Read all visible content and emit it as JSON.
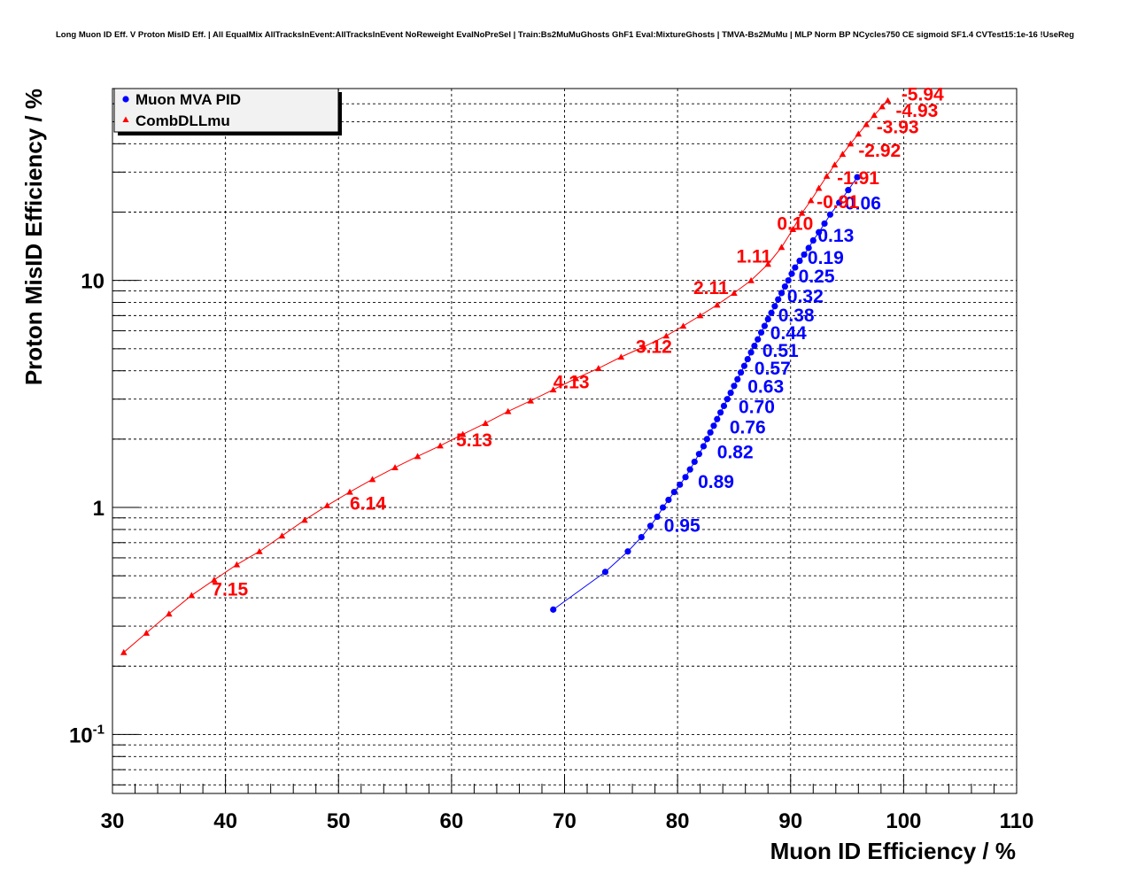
{
  "chart_data": {
    "type": "scatter",
    "title": "Long Muon ID Eff. V Proton MisID Eff. | All EqualMix AllTracksInEvent:AllTracksInEvent NoReweight EvalNoPreSel | Train:Bs2MuMuGhosts GhF1 Eval:MixtureGhosts | TMVA-Bs2MuMu | MLP Norm BP NCycles750 CE sigmoid SF1.4 CVTest15:1e-16 !UseReg",
    "xlabel": "Muon ID Efficiency / %",
    "ylabel": "Proton MisID Efficiency / %",
    "xlim": [
      30,
      110
    ],
    "ylim": [
      0.055,
      70
    ],
    "y_scale": "log",
    "grid": true,
    "legend_position": "top-left",
    "x_ticks": [
      "30",
      "40",
      "50",
      "60",
      "70",
      "80",
      "90",
      "100",
      "110"
    ],
    "y_ticks": [
      {
        "value": 0.1,
        "base": "10",
        "exp": "-1"
      },
      {
        "value": 1,
        "base": "1",
        "exp": ""
      },
      {
        "value": 10,
        "base": "10",
        "exp": ""
      }
    ],
    "series": [
      {
        "name": "Muon MVA PID",
        "color": "#0000ff",
        "marker": "circle",
        "x": [
          69.0,
          73.6,
          75.6,
          76.8,
          77.6,
          78.2,
          78.7,
          79.2,
          79.7,
          80.2,
          80.7,
          81.1,
          81.5,
          81.9,
          82.3,
          82.6,
          82.9,
          83.2,
          83.5,
          83.8,
          84.1,
          84.4,
          84.7,
          85.0,
          85.3,
          85.6,
          85.9,
          86.2,
          86.5,
          86.8,
          87.1,
          87.4,
          87.7,
          88.0,
          88.3,
          88.6,
          88.9,
          89.2,
          89.5,
          89.8,
          90.1,
          90.4,
          90.8,
          91.2,
          91.6,
          92.0,
          92.5,
          93.0,
          93.5,
          94.3,
          95.1,
          95.9
        ],
        "y": [
          0.355,
          0.52,
          0.64,
          0.74,
          0.83,
          0.91,
          1.0,
          1.08,
          1.17,
          1.26,
          1.36,
          1.47,
          1.59,
          1.72,
          1.86,
          2.0,
          2.14,
          2.29,
          2.45,
          2.62,
          2.8,
          3.0,
          3.2,
          3.43,
          3.67,
          3.93,
          4.2,
          4.5,
          4.82,
          5.15,
          5.5,
          5.9,
          6.3,
          6.75,
          7.2,
          7.7,
          8.25,
          8.8,
          9.4,
          10.0,
          10.7,
          11.4,
          12.2,
          13.0,
          13.9,
          15.0,
          16.3,
          17.8,
          19.5,
          22.0,
          25.0,
          28.5
        ]
      },
      {
        "name": "CombDLLmu",
        "color": "#ff0000",
        "marker": "triangle",
        "x": [
          31.0,
          33.0,
          35.0,
          37.0,
          39.0,
          41.0,
          43.0,
          45.0,
          47.0,
          49.0,
          51.0,
          53.0,
          55.0,
          57.0,
          59.0,
          61.0,
          63.0,
          65.0,
          67.0,
          69.0,
          71.0,
          73.0,
          75.0,
          77.0,
          79.0,
          80.5,
          82.0,
          83.5,
          85.0,
          86.5,
          88.0,
          89.2,
          90.2,
          91.0,
          91.8,
          92.5,
          93.2,
          93.9,
          94.6,
          95.3,
          96.0,
          96.7,
          97.4,
          98.1,
          98.6
        ],
        "y": [
          0.23,
          0.28,
          0.34,
          0.41,
          0.48,
          0.56,
          0.64,
          0.75,
          0.88,
          1.02,
          1.17,
          1.33,
          1.5,
          1.68,
          1.87,
          2.1,
          2.35,
          2.65,
          2.95,
          3.3,
          3.7,
          4.1,
          4.6,
          5.1,
          5.7,
          6.3,
          7.0,
          7.8,
          8.8,
          10.0,
          11.8,
          14.0,
          16.8,
          19.8,
          22.5,
          25.5,
          28.8,
          32.3,
          36.0,
          40.0,
          44.2,
          48.7,
          53.4,
          58.3,
          62.0
        ]
      }
    ],
    "cut_labels": [
      {
        "series": "Muon MVA PID",
        "text": "0.06",
        "x": 94.8,
        "y": 20.5
      },
      {
        "series": "Muon MVA PID",
        "text": "0.13",
        "x": 92.4,
        "y": 14.8
      },
      {
        "series": "Muon MVA PID",
        "text": "0.19",
        "x": 91.5,
        "y": 11.8
      },
      {
        "series": "Muon MVA PID",
        "text": "0.25",
        "x": 90.7,
        "y": 9.8
      },
      {
        "series": "Muon MVA PID",
        "text": "0.32",
        "x": 89.7,
        "y": 8.0
      },
      {
        "series": "Muon MVA PID",
        "text": "0.38",
        "x": 88.9,
        "y": 6.6
      },
      {
        "series": "Muon MVA PID",
        "text": "0.44",
        "x": 88.2,
        "y": 5.5
      },
      {
        "series": "Muon MVA PID",
        "text": "0.51",
        "x": 87.5,
        "y": 4.6
      },
      {
        "series": "Muon MVA PID",
        "text": "0.57",
        "x": 86.8,
        "y": 3.85
      },
      {
        "series": "Muon MVA PID",
        "text": "0.63",
        "x": 86.2,
        "y": 3.2
      },
      {
        "series": "Muon MVA PID",
        "text": "0.70",
        "x": 85.4,
        "y": 2.6
      },
      {
        "series": "Muon MVA PID",
        "text": "0.76",
        "x": 84.6,
        "y": 2.12
      },
      {
        "series": "Muon MVA PID",
        "text": "0.82",
        "x": 83.5,
        "y": 1.65
      },
      {
        "series": "Muon MVA PID",
        "text": "0.89",
        "x": 81.8,
        "y": 1.22
      },
      {
        "series": "Muon MVA PID",
        "text": "0.95",
        "x": 78.8,
        "y": 0.78
      },
      {
        "series": "CombDLLmu",
        "text": "-5.94",
        "x": 99.8,
        "y": 62.0
      },
      {
        "series": "CombDLLmu",
        "text": "-4.93",
        "x": 99.3,
        "y": 52.5
      },
      {
        "series": "CombDLLmu",
        "text": "-3.93",
        "x": 97.6,
        "y": 44.5
      },
      {
        "series": "CombDLLmu",
        "text": "-2.92",
        "x": 96.0,
        "y": 35.0
      },
      {
        "series": "CombDLLmu",
        "text": "-1.91",
        "x": 94.1,
        "y": 26.5
      },
      {
        "series": "CombDLLmu",
        "text": "-0.91",
        "x": 92.3,
        "y": 20.8
      },
      {
        "series": "CombDLLmu",
        "text": "0.10",
        "x": 88.8,
        "y": 16.7
      },
      {
        "series": "CombDLLmu",
        "text": "1.11",
        "x": 85.2,
        "y": 12.0
      },
      {
        "series": "CombDLLmu",
        "text": "2.11",
        "x": 81.4,
        "y": 8.7
      },
      {
        "series": "CombDLLmu",
        "text": "3.12",
        "x": 76.3,
        "y": 4.8
      },
      {
        "series": "CombDLLmu",
        "text": "4.13",
        "x": 69.0,
        "y": 3.35
      },
      {
        "series": "CombDLLmu",
        "text": "5.13",
        "x": 60.4,
        "y": 1.86
      },
      {
        "series": "CombDLLmu",
        "text": "6.14",
        "x": 51.0,
        "y": 0.98
      },
      {
        "series": "CombDLLmu",
        "text": "7.15",
        "x": 38.8,
        "y": 0.41
      }
    ]
  }
}
